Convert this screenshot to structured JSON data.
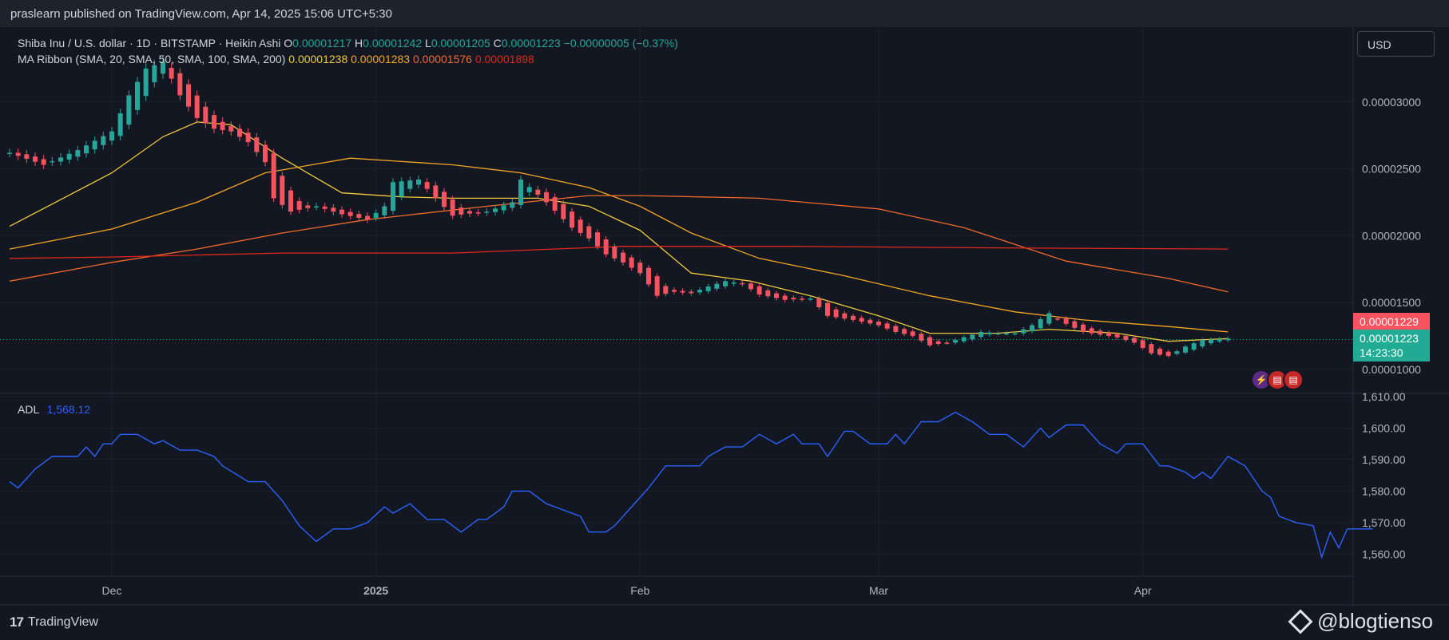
{
  "header": {
    "published": "praslearn published on TradingView.com, Apr 14, 2025 15:06 UTC+5:30"
  },
  "legend": {
    "symbol": "Shiba Inu / U.S. dollar · 1D · BITSTAMP · Heikin Ashi",
    "o_label": "O",
    "o": "0.00001217",
    "h_label": "H",
    "h": "0.00001242",
    "l_label": "L",
    "l": "0.00001205",
    "c_label": "C",
    "c": "0.00001223",
    "change": "−0.00000005 (−0.37%)",
    "ma_title": "MA Ribbon (SMA, 20, SMA, 50, SMA, 100, SMA, 200)",
    "ma20": "0.00001238",
    "ma50": "0.00001283",
    "ma100": "0.00001576",
    "ma200": "0.00001898",
    "adl_title": "ADL",
    "adl": "1,568.12"
  },
  "currency": "USD",
  "tags": {
    "sma": "0.00001229",
    "last": "0.00001223",
    "countdown": "14:23:30"
  },
  "colors": {
    "up": "#26a69a",
    "down": "#f7525f",
    "ma20": "#f0c93c",
    "ma50": "#f5a623",
    "ma100": "#f26a2a",
    "ma200": "#e0281b",
    "adl": "#2962ff"
  },
  "footer": {
    "brand": "TradingView",
    "watermark": "@blogtienso"
  },
  "chart_data": [
    {
      "type": "candlestick",
      "style": "Heikin Ashi",
      "y_ticks": [
        "0.00001000",
        "0.00001500",
        "0.00002000",
        "0.00002500",
        "0.00003000"
      ],
      "ylim": [
        8.2e-06,
        3.56e-05
      ],
      "x_ticks": [
        "Dec",
        "2025",
        "Feb",
        "Mar",
        "Apr"
      ],
      "x_ticks_day": [
        0,
        31,
        62,
        90,
        121
      ],
      "x_range_day": [
        -12,
        135
      ],
      "candles_anchor": [
        [
          -12,
          2.62e-05
        ],
        [
          -8,
          2.53e-05
        ],
        [
          -4,
          2.64e-05
        ],
        [
          0,
          2.78e-05
        ],
        [
          2,
          3.05e-05
        ],
        [
          4,
          3.25e-05
        ],
        [
          6,
          3.3e-05
        ],
        [
          8,
          3.05e-05
        ],
        [
          10,
          2.88e-05
        ],
        [
          12,
          2.8e-05
        ],
        [
          14,
          2.78e-05
        ],
        [
          16,
          2.7e-05
        ],
        [
          18,
          2.55e-05
        ],
        [
          19,
          2.28e-05
        ],
        [
          21,
          2.18e-05
        ],
        [
          24,
          2.22e-05
        ],
        [
          27,
          2.16e-05
        ],
        [
          30,
          2.12e-05
        ],
        [
          32,
          2.22e-05
        ],
        [
          33,
          2.4e-05
        ],
        [
          36,
          2.42e-05
        ],
        [
          38,
          2.28e-05
        ],
        [
          40,
          2.15e-05
        ],
        [
          44,
          2.18e-05
        ],
        [
          47,
          2.25e-05
        ],
        [
          48,
          2.42e-05
        ],
        [
          51,
          2.25e-05
        ],
        [
          54,
          2.06e-05
        ],
        [
          56,
          1.98e-05
        ],
        [
          58,
          1.86e-05
        ],
        [
          60,
          1.8e-05
        ],
        [
          62,
          1.72e-05
        ],
        [
          64,
          1.55e-05
        ],
        [
          66,
          1.58e-05
        ],
        [
          68,
          1.57e-05
        ],
        [
          70,
          1.62e-05
        ],
        [
          72,
          1.66e-05
        ],
        [
          74,
          1.64e-05
        ],
        [
          76,
          1.56e-05
        ],
        [
          79,
          1.52e-05
        ],
        [
          82,
          1.53e-05
        ],
        [
          84,
          1.4e-05
        ],
        [
          87,
          1.37e-05
        ],
        [
          90,
          1.33e-05
        ],
        [
          92,
          1.28e-05
        ],
        [
          94,
          1.25e-05
        ],
        [
          96,
          1.18e-05
        ],
        [
          98,
          1.2e-05
        ],
        [
          100,
          1.24e-05
        ],
        [
          102,
          1.28e-05
        ],
        [
          104,
          1.27e-05
        ],
        [
          106,
          1.27e-05
        ],
        [
          108,
          1.33e-05
        ],
        [
          110,
          1.42e-05
        ],
        [
          112,
          1.34e-05
        ],
        [
          114,
          1.28e-05
        ],
        [
          116,
          1.26e-05
        ],
        [
          118,
          1.24e-05
        ],
        [
          120,
          1.2e-05
        ],
        [
          122,
          1.12e-05
        ],
        [
          124,
          1.1e-05
        ],
        [
          126,
          1.17e-05
        ],
        [
          128,
          1.22e-05
        ],
        [
          131,
          1.23e-05
        ]
      ],
      "series": [
        {
          "name": "SMA 20",
          "points": [
            [
              -12,
              2.07e-05
            ],
            [
              0,
              2.47e-05
            ],
            [
              6,
              2.74e-05
            ],
            [
              10,
              2.85e-05
            ],
            [
              14,
              2.83e-05
            ],
            [
              20,
              2.58e-05
            ],
            [
              27,
              2.32e-05
            ],
            [
              34,
              2.29e-05
            ],
            [
              40,
              2.28e-05
            ],
            [
              50,
              2.28e-05
            ],
            [
              56,
              2.22e-05
            ],
            [
              62,
              2.04e-05
            ],
            [
              68,
              1.72e-05
            ],
            [
              75,
              1.66e-05
            ],
            [
              82,
              1.55e-05
            ],
            [
              90,
              1.4e-05
            ],
            [
              96,
              1.27e-05
            ],
            [
              104,
              1.27e-05
            ],
            [
              110,
              1.3e-05
            ],
            [
              118,
              1.27e-05
            ],
            [
              124,
              1.21e-05
            ],
            [
              131,
              1.23e-05
            ]
          ]
        },
        {
          "name": "SMA 50",
          "points": [
            [
              -12,
              1.9e-05
            ],
            [
              0,
              2.05e-05
            ],
            [
              10,
              2.25e-05
            ],
            [
              18,
              2.47e-05
            ],
            [
              28,
              2.58e-05
            ],
            [
              40,
              2.53e-05
            ],
            [
              48,
              2.47e-05
            ],
            [
              56,
              2.36e-05
            ],
            [
              62,
              2.22e-05
            ],
            [
              68,
              2.02e-05
            ],
            [
              76,
              1.83e-05
            ],
            [
              86,
              1.7e-05
            ],
            [
              96,
              1.55e-05
            ],
            [
              106,
              1.43e-05
            ],
            [
              114,
              1.37e-05
            ],
            [
              124,
              1.32e-05
            ],
            [
              131,
              1.28e-05
            ]
          ]
        },
        {
          "name": "SMA 100",
          "points": [
            [
              -12,
              1.66e-05
            ],
            [
              0,
              1.8e-05
            ],
            [
              10,
              1.9e-05
            ],
            [
              20,
              2.02e-05
            ],
            [
              30,
              2.12e-05
            ],
            [
              44,
              2.22e-05
            ],
            [
              56,
              2.3e-05
            ],
            [
              62,
              2.3e-05
            ],
            [
              76,
              2.28e-05
            ],
            [
              90,
              2.2e-05
            ],
            [
              100,
              2.06e-05
            ],
            [
              112,
              1.81e-05
            ],
            [
              124,
              1.68e-05
            ],
            [
              131,
              1.58e-05
            ]
          ]
        },
        {
          "name": "SMA 200",
          "points": [
            [
              -12,
              1.83e-05
            ],
            [
              0,
              1.84e-05
            ],
            [
              20,
              1.87e-05
            ],
            [
              40,
              1.87e-05
            ],
            [
              60,
              1.92e-05
            ],
            [
              80,
              1.92e-05
            ],
            [
              100,
              1.91e-05
            ],
            [
              131,
              1.9e-05
            ]
          ]
        }
      ]
    },
    {
      "type": "line",
      "y_ticks": [
        "1,560.00",
        "1,570.00",
        "1,580.00",
        "1,590.00",
        "1,600.00",
        "1,610.00"
      ],
      "ylim": [
        1553,
        1611
      ],
      "series": [
        {
          "name": "ADL",
          "points": [
            [
              -12,
              1583
            ],
            [
              -11,
              1581
            ],
            [
              -9,
              1587
            ],
            [
              -7,
              1591
            ],
            [
              -4,
              1591
            ],
            [
              -3,
              1594
            ],
            [
              -2,
              1591
            ],
            [
              -1,
              1595
            ],
            [
              0,
              1595
            ],
            [
              1,
              1598
            ],
            [
              3,
              1598
            ],
            [
              5,
              1595
            ],
            [
              6,
              1596
            ],
            [
              8,
              1593
            ],
            [
              10,
              1593
            ],
            [
              12,
              1591
            ],
            [
              13,
              1588
            ],
            [
              16,
              1583
            ],
            [
              18,
              1583
            ],
            [
              20,
              1577
            ],
            [
              22,
              1569
            ],
            [
              24,
              1564
            ],
            [
              26,
              1568
            ],
            [
              28,
              1568
            ],
            [
              30,
              1570
            ],
            [
              32,
              1575
            ],
            [
              33,
              1573
            ],
            [
              35,
              1576
            ],
            [
              37,
              1571
            ],
            [
              39,
              1571
            ],
            [
              41,
              1567
            ],
            [
              43,
              1571
            ],
            [
              44,
              1571
            ],
            [
              46,
              1575
            ],
            [
              47,
              1580
            ],
            [
              49,
              1580
            ],
            [
              51,
              1576
            ],
            [
              53,
              1574
            ],
            [
              55,
              1572
            ],
            [
              56,
              1567
            ],
            [
              58,
              1567
            ],
            [
              59,
              1569
            ],
            [
              61,
              1575
            ],
            [
              63,
              1581
            ],
            [
              65,
              1588
            ],
            [
              67,
              1588
            ],
            [
              69,
              1588
            ],
            [
              70,
              1591
            ],
            [
              72,
              1594
            ],
            [
              74,
              1594
            ],
            [
              76,
              1598
            ],
            [
              78,
              1595
            ],
            [
              80,
              1598
            ],
            [
              81,
              1595
            ],
            [
              83,
              1595
            ],
            [
              84,
              1591
            ],
            [
              86,
              1599
            ],
            [
              87,
              1599
            ],
            [
              89,
              1595
            ],
            [
              91,
              1595
            ],
            [
              92,
              1598
            ],
            [
              93,
              1595
            ],
            [
              95,
              1602
            ],
            [
              97,
              1602
            ],
            [
              99,
              1605
            ],
            [
              101,
              1602
            ],
            [
              103,
              1598
            ],
            [
              105,
              1598
            ],
            [
              107,
              1594
            ],
            [
              109,
              1600
            ],
            [
              110,
              1597
            ],
            [
              112,
              1601
            ],
            [
              114,
              1601
            ],
            [
              116,
              1595
            ],
            [
              118,
              1592
            ],
            [
              119,
              1595
            ],
            [
              121,
              1595
            ],
            [
              123,
              1588
            ],
            [
              124,
              1588
            ],
            [
              126,
              1586
            ],
            [
              127,
              1584
            ],
            [
              128,
              1586
            ],
            [
              129,
              1584
            ],
            [
              131,
              1591
            ],
            [
              133,
              1588
            ],
            [
              135,
              1580
            ],
            [
              136,
              1578
            ],
            [
              137,
              1572
            ],
            [
              139,
              1570
            ],
            [
              141,
              1569
            ],
            [
              142,
              1559
            ],
            [
              143,
              1567
            ],
            [
              144,
              1562
            ],
            [
              145,
              1568
            ],
            [
              148,
              1568
            ]
          ]
        }
      ]
    }
  ]
}
